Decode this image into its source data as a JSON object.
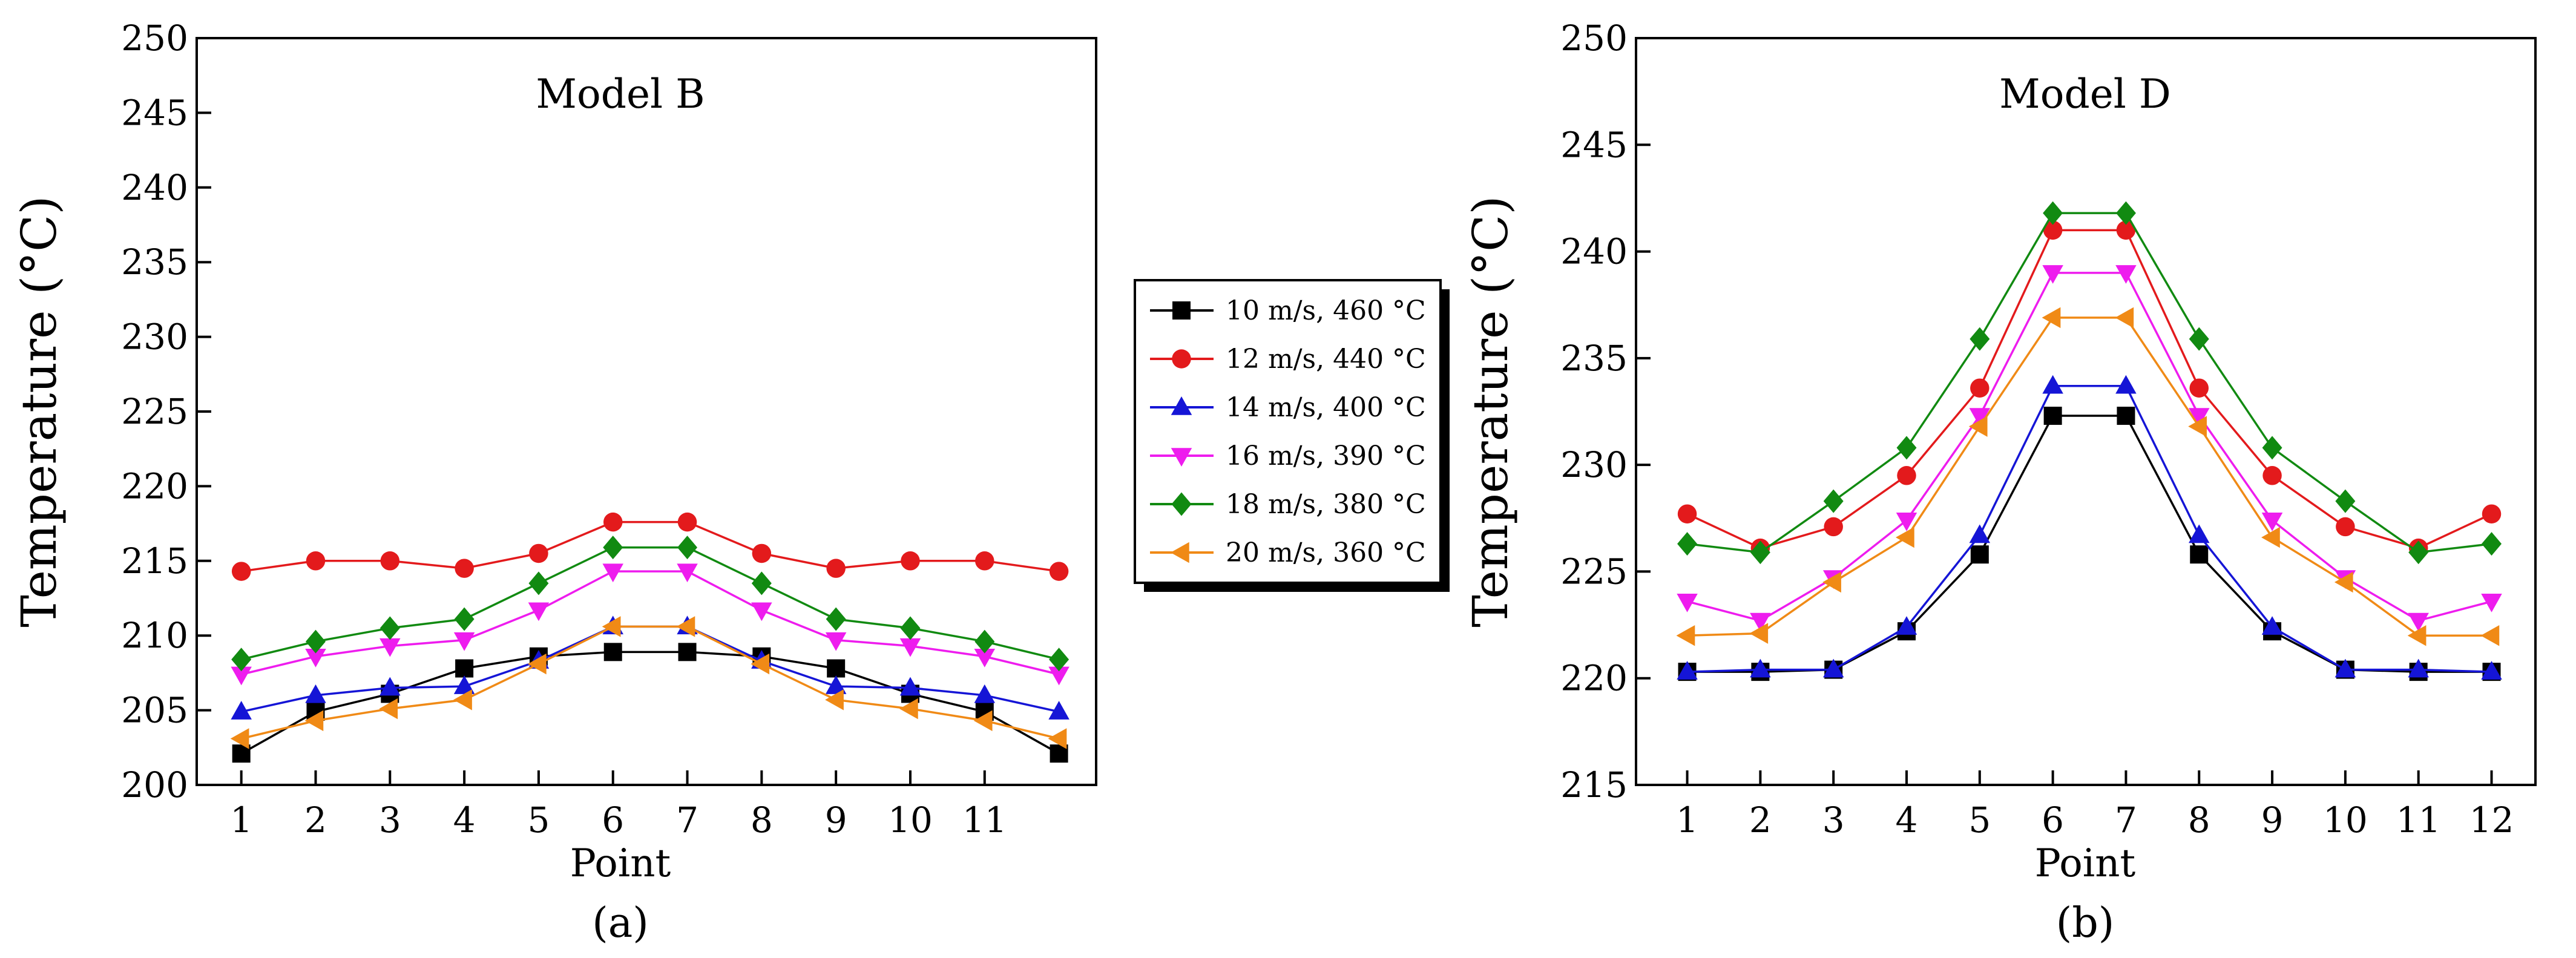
{
  "chart_data": [
    {
      "type": "line",
      "title": "Model B",
      "caption": "(a)",
      "xlabel": "Point",
      "ylabel": "Temperature (°C)",
      "xlim": [
        0.4,
        12.5
      ],
      "ylim": [
        200,
        250
      ],
      "x_ticks": [
        1,
        2,
        3,
        4,
        5,
        6,
        7,
        8,
        9,
        10,
        11
      ],
      "y_ticks": [
        200,
        205,
        210,
        215,
        220,
        225,
        230,
        235,
        240,
        245,
        250
      ],
      "x": [
        1,
        2,
        3,
        4,
        5,
        6,
        7,
        8,
        9,
        10,
        11,
        12
      ],
      "series": [
        {
          "name": "10 m/s, 460 °C",
          "color": "#000000",
          "marker": "square",
          "values": [
            202.1,
            204.9,
            206.1,
            207.8,
            208.6,
            208.9,
            208.9,
            208.6,
            207.8,
            206.1,
            204.9,
            202.1
          ]
        },
        {
          "name": "12 m/s, 440 °C",
          "color": "#e31a1c",
          "marker": "circle",
          "values": [
            214.3,
            215.0,
            215.0,
            214.5,
            215.5,
            217.6,
            217.6,
            215.5,
            214.5,
            215.0,
            215.0,
            214.3
          ]
        },
        {
          "name": "14 m/s, 400 °C",
          "color": "#1515d6",
          "marker": "triangle-up",
          "values": [
            204.9,
            206.0,
            206.5,
            206.6,
            208.3,
            210.6,
            210.6,
            208.3,
            206.6,
            206.5,
            206.0,
            204.9
          ]
        },
        {
          "name": "16 m/s, 390 °C",
          "color": "#ee1cee",
          "marker": "triangle-down",
          "values": [
            207.4,
            208.6,
            209.3,
            209.7,
            211.7,
            214.3,
            214.3,
            211.7,
            209.7,
            209.3,
            208.6,
            207.4
          ]
        },
        {
          "name": "18 m/s, 380 °C",
          "color": "#118a11",
          "marker": "diamond",
          "values": [
            208.4,
            209.6,
            210.5,
            211.1,
            213.5,
            215.9,
            215.9,
            213.5,
            211.1,
            210.5,
            209.6,
            208.4
          ]
        },
        {
          "name": "20 m/s, 360 °C",
          "color": "#f08a16",
          "marker": "triangle-left",
          "values": [
            203.1,
            204.3,
            205.1,
            205.7,
            208.1,
            210.6,
            210.6,
            208.1,
            205.7,
            205.1,
            204.3,
            203.1
          ]
        }
      ]
    },
    {
      "type": "line",
      "title": "Model D",
      "caption": "(b)",
      "xlabel": "Point",
      "ylabel": "Temperature (°C)",
      "xlim": [
        0.3,
        12.6
      ],
      "ylim": [
        215,
        250
      ],
      "x_ticks": [
        1,
        2,
        3,
        4,
        5,
        6,
        7,
        8,
        9,
        10,
        11,
        12
      ],
      "y_ticks": [
        215,
        220,
        225,
        230,
        235,
        240,
        245,
        250
      ],
      "x": [
        1,
        2,
        3,
        4,
        5,
        6,
        7,
        8,
        9,
        10,
        11,
        12
      ],
      "series": [
        {
          "name": "10 m/s, 460 °C",
          "color": "#000000",
          "marker": "square",
          "values": [
            220.3,
            220.3,
            220.4,
            222.2,
            225.8,
            232.3,
            232.3,
            225.8,
            222.2,
            220.4,
            220.3,
            220.3
          ]
        },
        {
          "name": "12 m/s, 440 °C",
          "color": "#e31a1c",
          "marker": "circle",
          "values": [
            227.7,
            226.1,
            227.1,
            229.5,
            233.6,
            241.0,
            241.0,
            233.6,
            229.5,
            227.1,
            226.1,
            227.7
          ]
        },
        {
          "name": "14 m/s, 400 °C",
          "color": "#1515d6",
          "marker": "triangle-up",
          "values": [
            220.3,
            220.4,
            220.4,
            222.4,
            226.7,
            233.7,
            233.7,
            226.7,
            222.4,
            220.4,
            220.4,
            220.3
          ]
        },
        {
          "name": "16 m/s, 390 °C",
          "color": "#ee1cee",
          "marker": "triangle-down",
          "values": [
            223.6,
            222.7,
            224.7,
            227.4,
            232.3,
            239.0,
            239.0,
            232.3,
            227.4,
            224.7,
            222.7,
            223.6
          ]
        },
        {
          "name": "18 m/s, 380 °C",
          "color": "#118a11",
          "marker": "diamond",
          "values": [
            226.3,
            225.9,
            228.3,
            230.8,
            235.9,
            241.8,
            241.8,
            235.9,
            230.8,
            228.3,
            225.9,
            226.3
          ]
        },
        {
          "name": "20 m/s, 360 °C",
          "color": "#f08a16",
          "marker": "triangle-left",
          "values": [
            222.0,
            222.1,
            224.5,
            226.6,
            231.8,
            236.9,
            236.9,
            231.8,
            226.6,
            224.5,
            222.0,
            222.0
          ]
        }
      ]
    }
  ]
}
